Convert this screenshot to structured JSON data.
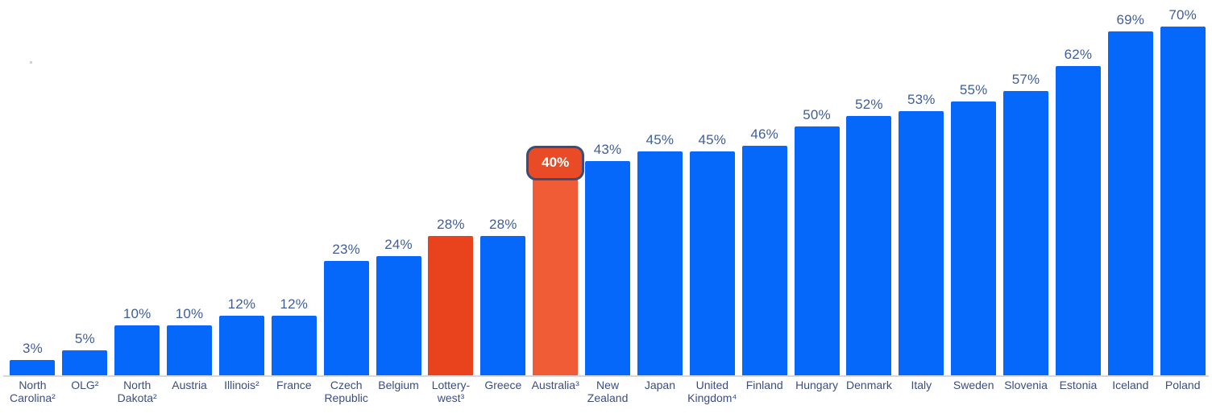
{
  "chart_data": {
    "type": "bar",
    "title": "",
    "unit": "%",
    "ylim": [
      0,
      70
    ],
    "grid": false,
    "legend": null,
    "colors": {
      "bar_default": "#0668fa",
      "bar_highlight_primary": "#e8431c",
      "bar_highlight_secondary": "#f05c35",
      "badge_fill": "#e84b25",
      "badge_border": "#3a4e78",
      "badge_text": "#ffffff",
      "value_label": "#3f5e9a",
      "axis_label": "#3c4d80",
      "baseline": "#d8d8d8"
    },
    "bars": [
      {
        "label": "North Carolina²",
        "label_lines": "North\nCarolina²",
        "value": 3,
        "value_label": "3%",
        "color_key": "default"
      },
      {
        "label": "OLG²",
        "label_lines": "OLG²",
        "value": 5,
        "value_label": "5%",
        "color_key": "default"
      },
      {
        "label": "North Dakota²",
        "label_lines": "North\nDakota²",
        "value": 10,
        "value_label": "10%",
        "color_key": "default"
      },
      {
        "label": "Austria",
        "label_lines": "Austria",
        "value": 10,
        "value_label": "10%",
        "color_key": "default"
      },
      {
        "label": "Illinois²",
        "label_lines": "Illinois²",
        "value": 12,
        "value_label": "12%",
        "color_key": "default"
      },
      {
        "label": "France",
        "label_lines": "France",
        "value": 12,
        "value_label": "12%",
        "color_key": "default"
      },
      {
        "label": "Czech Republic",
        "label_lines": "Czech\nRepublic",
        "value": 23,
        "value_label": "23%",
        "color_key": "default"
      },
      {
        "label": "Belgium",
        "label_lines": "Belgium",
        "value": 24,
        "value_label": "24%",
        "color_key": "default"
      },
      {
        "label": "Lottery-west³",
        "label_lines": "Lottery-\nwest³",
        "value": 28,
        "value_label": "28%",
        "color_key": "highlight_primary"
      },
      {
        "label": "Greece",
        "label_lines": "Greece",
        "value": 28,
        "value_label": "28%",
        "color_key": "default"
      },
      {
        "label": "Australia³",
        "label_lines": "Australia³",
        "value": 40,
        "value_label": "40%",
        "color_key": "highlight_secondary",
        "badge": true
      },
      {
        "label": "New Zealand",
        "label_lines": "New\nZealand",
        "value": 43,
        "value_label": "43%",
        "color_key": "default"
      },
      {
        "label": "Japan",
        "label_lines": "Japan",
        "value": 45,
        "value_label": "45%",
        "color_key": "default"
      },
      {
        "label": "United Kingdom⁴",
        "label_lines": "United\nKingdom⁴",
        "value": 45,
        "value_label": "45%",
        "color_key": "default"
      },
      {
        "label": "Finland",
        "label_lines": "Finland",
        "value": 46,
        "value_label": "46%",
        "color_key": "default"
      },
      {
        "label": "Hungary",
        "label_lines": "Hungary",
        "value": 50,
        "value_label": "50%",
        "color_key": "default"
      },
      {
        "label": "Denmark",
        "label_lines": "Denmark",
        "value": 52,
        "value_label": "52%",
        "color_key": "default"
      },
      {
        "label": "Italy",
        "label_lines": "Italy",
        "value": 53,
        "value_label": "53%",
        "color_key": "default"
      },
      {
        "label": "Sweden",
        "label_lines": "Sweden",
        "value": 55,
        "value_label": "55%",
        "color_key": "default"
      },
      {
        "label": "Slovenia",
        "label_lines": "Slovenia",
        "value": 57,
        "value_label": "57%",
        "color_key": "default"
      },
      {
        "label": "Estonia",
        "label_lines": "Estonia",
        "value": 62,
        "value_label": "62%",
        "color_key": "default"
      },
      {
        "label": "Iceland",
        "label_lines": "Iceland",
        "value": 69,
        "value_label": "69%",
        "color_key": "default"
      },
      {
        "label": "Poland",
        "label_lines": "Poland",
        "value": 70,
        "value_label": "70%",
        "color_key": "default"
      }
    ]
  }
}
